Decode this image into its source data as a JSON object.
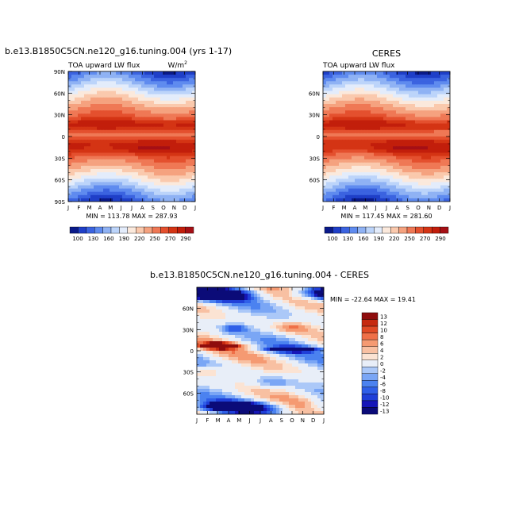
{
  "chart_data": [
    {
      "type": "heatmap",
      "case": "b.e13.B1850C5CN.ne120_g16.tuning.004 (yrs 1-17)",
      "variable": "TOA upward LW flux",
      "units": "W/m",
      "units_sup": "2",
      "x": [
        "J",
        "F",
        "M",
        "A",
        "M",
        "J",
        "J",
        "A",
        "S",
        "O",
        "N",
        "D",
        "J"
      ],
      "y_ticks": [
        "90N",
        "60N",
        "30N",
        "0",
        "30S",
        "60S",
        "90S"
      ],
      "stats_text": "MIN = 113.78  MAX = 287.93",
      "min": 113.78,
      "max": 287.93,
      "colorbar_labels": [
        "100",
        "130",
        "160",
        "190",
        "220",
        "250",
        "270",
        "290"
      ],
      "colorbar_levels": [
        100,
        115,
        130,
        145,
        160,
        175,
        190,
        205,
        220,
        235,
        250,
        260,
        270,
        280,
        290
      ]
    },
    {
      "type": "heatmap",
      "title": "CERES",
      "variable": "TOA upward LW flux",
      "x": [
        "J",
        "F",
        "M",
        "A",
        "M",
        "J",
        "J",
        "A",
        "S",
        "O",
        "N",
        "D",
        "J"
      ],
      "y_ticks": [
        "60N",
        "30N",
        "0",
        "30S",
        "60S"
      ],
      "stats_text": "MIN = 117.45  MAX = 281.60",
      "min": 117.45,
      "max": 281.6,
      "colorbar_labels": [
        "100",
        "130",
        "160",
        "190",
        "220",
        "250",
        "270",
        "290"
      ],
      "colorbar_levels": [
        100,
        115,
        130,
        145,
        160,
        175,
        190,
        205,
        220,
        235,
        250,
        260,
        270,
        280,
        290
      ]
    },
    {
      "type": "heatmap",
      "title": "b.e13.B1850C5CN.ne120_g16.tuning.004 - CERES",
      "x": [
        "J",
        "F",
        "M",
        "A",
        "M",
        "J",
        "J",
        "A",
        "S",
        "O",
        "N",
        "D",
        "J"
      ],
      "y_ticks": [
        "60N",
        "30N",
        "0",
        "30S",
        "60S"
      ],
      "stats_text": "MIN = -22.64  MAX =  19.41",
      "min": -22.64,
      "max": 19.41,
      "colorbar_labels": [
        "13",
        "12",
        "10",
        "8",
        "6",
        "4",
        "2",
        "0",
        "-2",
        "-4",
        "-6",
        "-8",
        "-10",
        "-12",
        "-13"
      ]
    }
  ],
  "colors": {
    "abs_scale": [
      "#0a1a8a",
      "#1f3fc8",
      "#3b63e0",
      "#5f8bef",
      "#8fb2f4",
      "#bcd4fa",
      "#e3ecfb",
      "#fbe9dc",
      "#fac9ad",
      "#f5a27f",
      "#ef7855",
      "#e4502e",
      "#d43414",
      "#c21e0b",
      "#a50f15"
    ],
    "diff_scale": [
      "#0b0b78",
      "#1616b8",
      "#1f3fd8",
      "#2f5fe8",
      "#4b82f0",
      "#7aa6f5",
      "#abc8f8",
      "#e8eef8",
      "#fbe3d3",
      "#f8c0a2",
      "#f59a72",
      "#ef7048",
      "#e04a25",
      "#c62a10",
      "#8f0d0d"
    ]
  }
}
